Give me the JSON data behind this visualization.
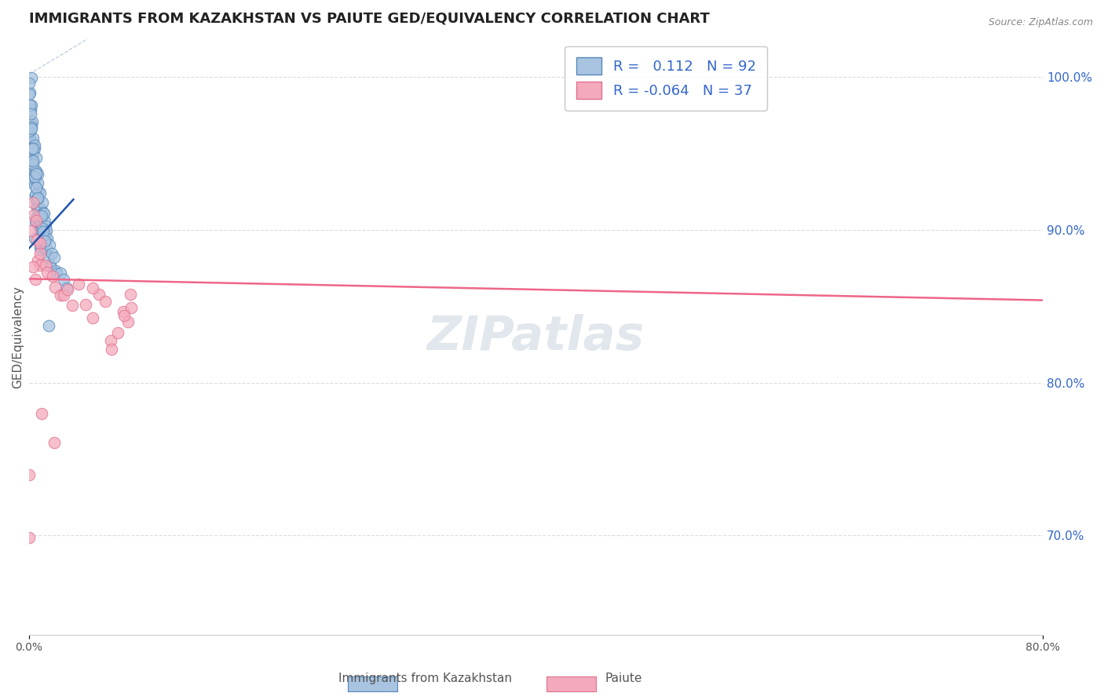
{
  "title": "IMMIGRANTS FROM KAZAKHSTAN VS PAIUTE GED/EQUIVALENCY CORRELATION CHART",
  "source_text": "Source: ZipAtlas.com",
  "ylabel": "GED/Equivalency",
  "x_label_bottom": "Immigrants from Kazakhstan",
  "x_label_bottom2": "Paiute",
  "xlim": [
    0.0,
    0.8
  ],
  "ylim": [
    0.635,
    1.025
  ],
  "ytick_vals_right": [
    0.7,
    0.8,
    0.9,
    1.0
  ],
  "r_blue": 0.112,
  "n_blue": 92,
  "r_pink": -0.064,
  "n_pink": 37,
  "blue_color": "#A8C4E0",
  "pink_color": "#F4AABC",
  "blue_edge": "#5588BB",
  "pink_edge": "#E07090",
  "trend_blue": "#2255AA",
  "trend_pink": "#EE6688",
  "diag_color": "#BBCCDD",
  "watermark_color": "#AABBCC",
  "background": "#FFFFFF",
  "title_color": "#222222",
  "title_fontsize": 13,
  "axis_label_color": "#555555",
  "tick_color_right": "#3366CC",
  "blue_scatter_x": [
    0.001,
    0.001,
    0.001,
    0.001,
    0.001,
    0.002,
    0.002,
    0.002,
    0.002,
    0.002,
    0.003,
    0.003,
    0.003,
    0.003,
    0.003,
    0.004,
    0.004,
    0.004,
    0.004,
    0.005,
    0.005,
    0.005,
    0.005,
    0.005,
    0.005,
    0.005,
    0.006,
    0.006,
    0.006,
    0.006,
    0.007,
    0.007,
    0.007,
    0.007,
    0.008,
    0.008,
    0.008,
    0.008,
    0.008,
    0.009,
    0.009,
    0.009,
    0.01,
    0.01,
    0.01,
    0.01,
    0.011,
    0.011,
    0.011,
    0.012,
    0.012,
    0.012,
    0.013,
    0.013,
    0.014,
    0.014,
    0.015,
    0.015,
    0.016,
    0.016,
    0.018,
    0.018,
    0.02,
    0.02,
    0.022,
    0.025,
    0.028,
    0.03,
    0.0,
    0.0,
    0.0,
    0.0,
    0.001,
    0.001,
    0.001,
    0.002,
    0.002,
    0.003,
    0.003,
    0.004,
    0.004,
    0.005,
    0.005,
    0.006,
    0.006,
    0.007,
    0.008,
    0.009,
    0.01,
    0.011,
    0.012,
    0.015
  ],
  "blue_scatter_y": [
    1.0,
    0.99,
    0.98,
    0.97,
    0.96,
    0.98,
    0.97,
    0.96,
    0.95,
    0.94,
    0.97,
    0.96,
    0.95,
    0.94,
    0.93,
    0.96,
    0.95,
    0.94,
    0.93,
    0.955,
    0.945,
    0.935,
    0.925,
    0.915,
    0.905,
    0.895,
    0.94,
    0.93,
    0.92,
    0.91,
    0.935,
    0.925,
    0.915,
    0.905,
    0.93,
    0.92,
    0.91,
    0.9,
    0.89,
    0.925,
    0.915,
    0.905,
    0.92,
    0.91,
    0.9,
    0.89,
    0.915,
    0.905,
    0.895,
    0.91,
    0.9,
    0.89,
    0.905,
    0.895,
    0.9,
    0.89,
    0.895,
    0.885,
    0.89,
    0.88,
    0.885,
    0.875,
    0.88,
    0.87,
    0.875,
    0.87,
    0.865,
    0.86,
    0.998,
    0.988,
    0.978,
    0.968,
    0.975,
    0.965,
    0.955,
    0.965,
    0.955,
    0.955,
    0.945,
    0.945,
    0.935,
    0.935,
    0.925,
    0.928,
    0.918,
    0.92,
    0.912,
    0.908,
    0.902,
    0.898,
    0.892,
    0.835
  ],
  "pink_scatter_x": [
    0.0,
    0.001,
    0.002,
    0.003,
    0.004,
    0.005,
    0.006,
    0.007,
    0.008,
    0.009,
    0.01,
    0.012,
    0.015,
    0.018,
    0.02,
    0.025,
    0.028,
    0.03,
    0.035,
    0.04,
    0.045,
    0.05,
    0.055,
    0.06,
    0.065,
    0.07,
    0.075,
    0.078,
    0.08,
    0.003,
    0.005,
    0.01,
    0.02,
    0.05,
    0.065,
    0.075,
    0.08
  ],
  "pink_scatter_y": [
    0.695,
    0.74,
    0.9,
    0.92,
    0.91,
    0.905,
    0.895,
    0.88,
    0.89,
    0.885,
    0.878,
    0.875,
    0.872,
    0.869,
    0.86,
    0.855,
    0.858,
    0.862,
    0.85,
    0.865,
    0.855,
    0.84,
    0.858,
    0.852,
    0.83,
    0.83,
    0.848,
    0.84,
    0.852,
    0.876,
    0.868,
    0.78,
    0.76,
    0.862,
    0.82,
    0.845,
    0.86
  ],
  "blue_trend_x": [
    0.0,
    0.035
  ],
  "blue_trend_y": [
    0.888,
    0.92
  ],
  "pink_trend_x": [
    0.0,
    0.8
  ],
  "pink_trend_y": [
    0.868,
    0.854
  ]
}
